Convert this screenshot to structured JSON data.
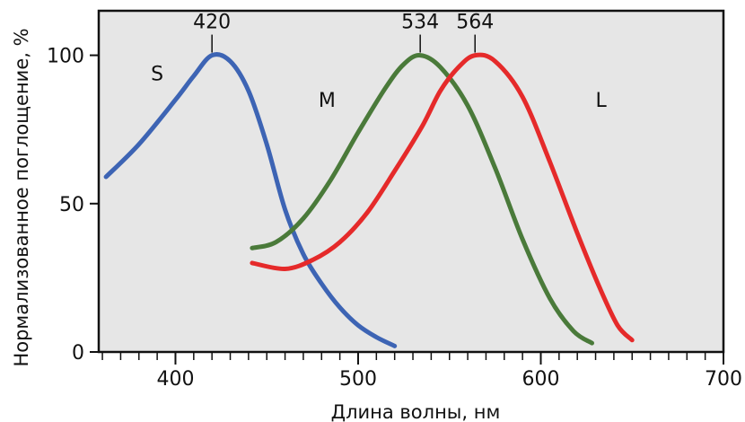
{
  "chart_data": {
    "type": "line",
    "xlabel": "Длина волны, нм",
    "ylabel": "Нормализованное поглощение, %",
    "xlim": [
      358,
      700
    ],
    "ylim": [
      0,
      115
    ],
    "xticks": [
      400,
      500,
      600,
      700
    ],
    "yticks": [
      0,
      50,
      100
    ],
    "minor_xtick_step": 10,
    "grid": false,
    "background": "#e6e6e6",
    "peaks": [
      {
        "label": "420",
        "x": 420,
        "y": 100
      },
      {
        "label": "534",
        "x": 534,
        "y": 100
      },
      {
        "label": "564",
        "x": 564,
        "y": 100
      }
    ],
    "series": [
      {
        "name": "S",
        "color": "#3d64b4",
        "label_pos": [
          390,
          94
        ],
        "points": [
          [
            362,
            59
          ],
          [
            380,
            70
          ],
          [
            400,
            85
          ],
          [
            410,
            93
          ],
          [
            420,
            100
          ],
          [
            430,
            98
          ],
          [
            440,
            88
          ],
          [
            450,
            70
          ],
          [
            460,
            48
          ],
          [
            470,
            33
          ],
          [
            480,
            23
          ],
          [
            490,
            15
          ],
          [
            500,
            9
          ],
          [
            510,
            5
          ],
          [
            520,
            2
          ]
        ]
      },
      {
        "name": "M",
        "color": "#4a7a3a",
        "label_pos": [
          483,
          85
        ],
        "points": [
          [
            442,
            35
          ],
          [
            455,
            37
          ],
          [
            470,
            45
          ],
          [
            485,
            58
          ],
          [
            500,
            74
          ],
          [
            515,
            89
          ],
          [
            525,
            97
          ],
          [
            534,
            100
          ],
          [
            545,
            96
          ],
          [
            560,
            83
          ],
          [
            575,
            62
          ],
          [
            590,
            38
          ],
          [
            605,
            18
          ],
          [
            618,
            7
          ],
          [
            628,
            3
          ]
        ]
      },
      {
        "name": "L",
        "color": "#e52a2a",
        "label_pos": [
          633,
          85
        ],
        "points": [
          [
            442,
            30
          ],
          [
            460,
            28
          ],
          [
            475,
            31
          ],
          [
            490,
            37
          ],
          [
            505,
            47
          ],
          [
            520,
            61
          ],
          [
            535,
            76
          ],
          [
            545,
            88
          ],
          [
            555,
            96
          ],
          [
            564,
            100
          ],
          [
            575,
            98
          ],
          [
            590,
            86
          ],
          [
            605,
            64
          ],
          [
            620,
            40
          ],
          [
            632,
            22
          ],
          [
            642,
            9
          ],
          [
            650,
            4
          ]
        ]
      }
    ]
  }
}
